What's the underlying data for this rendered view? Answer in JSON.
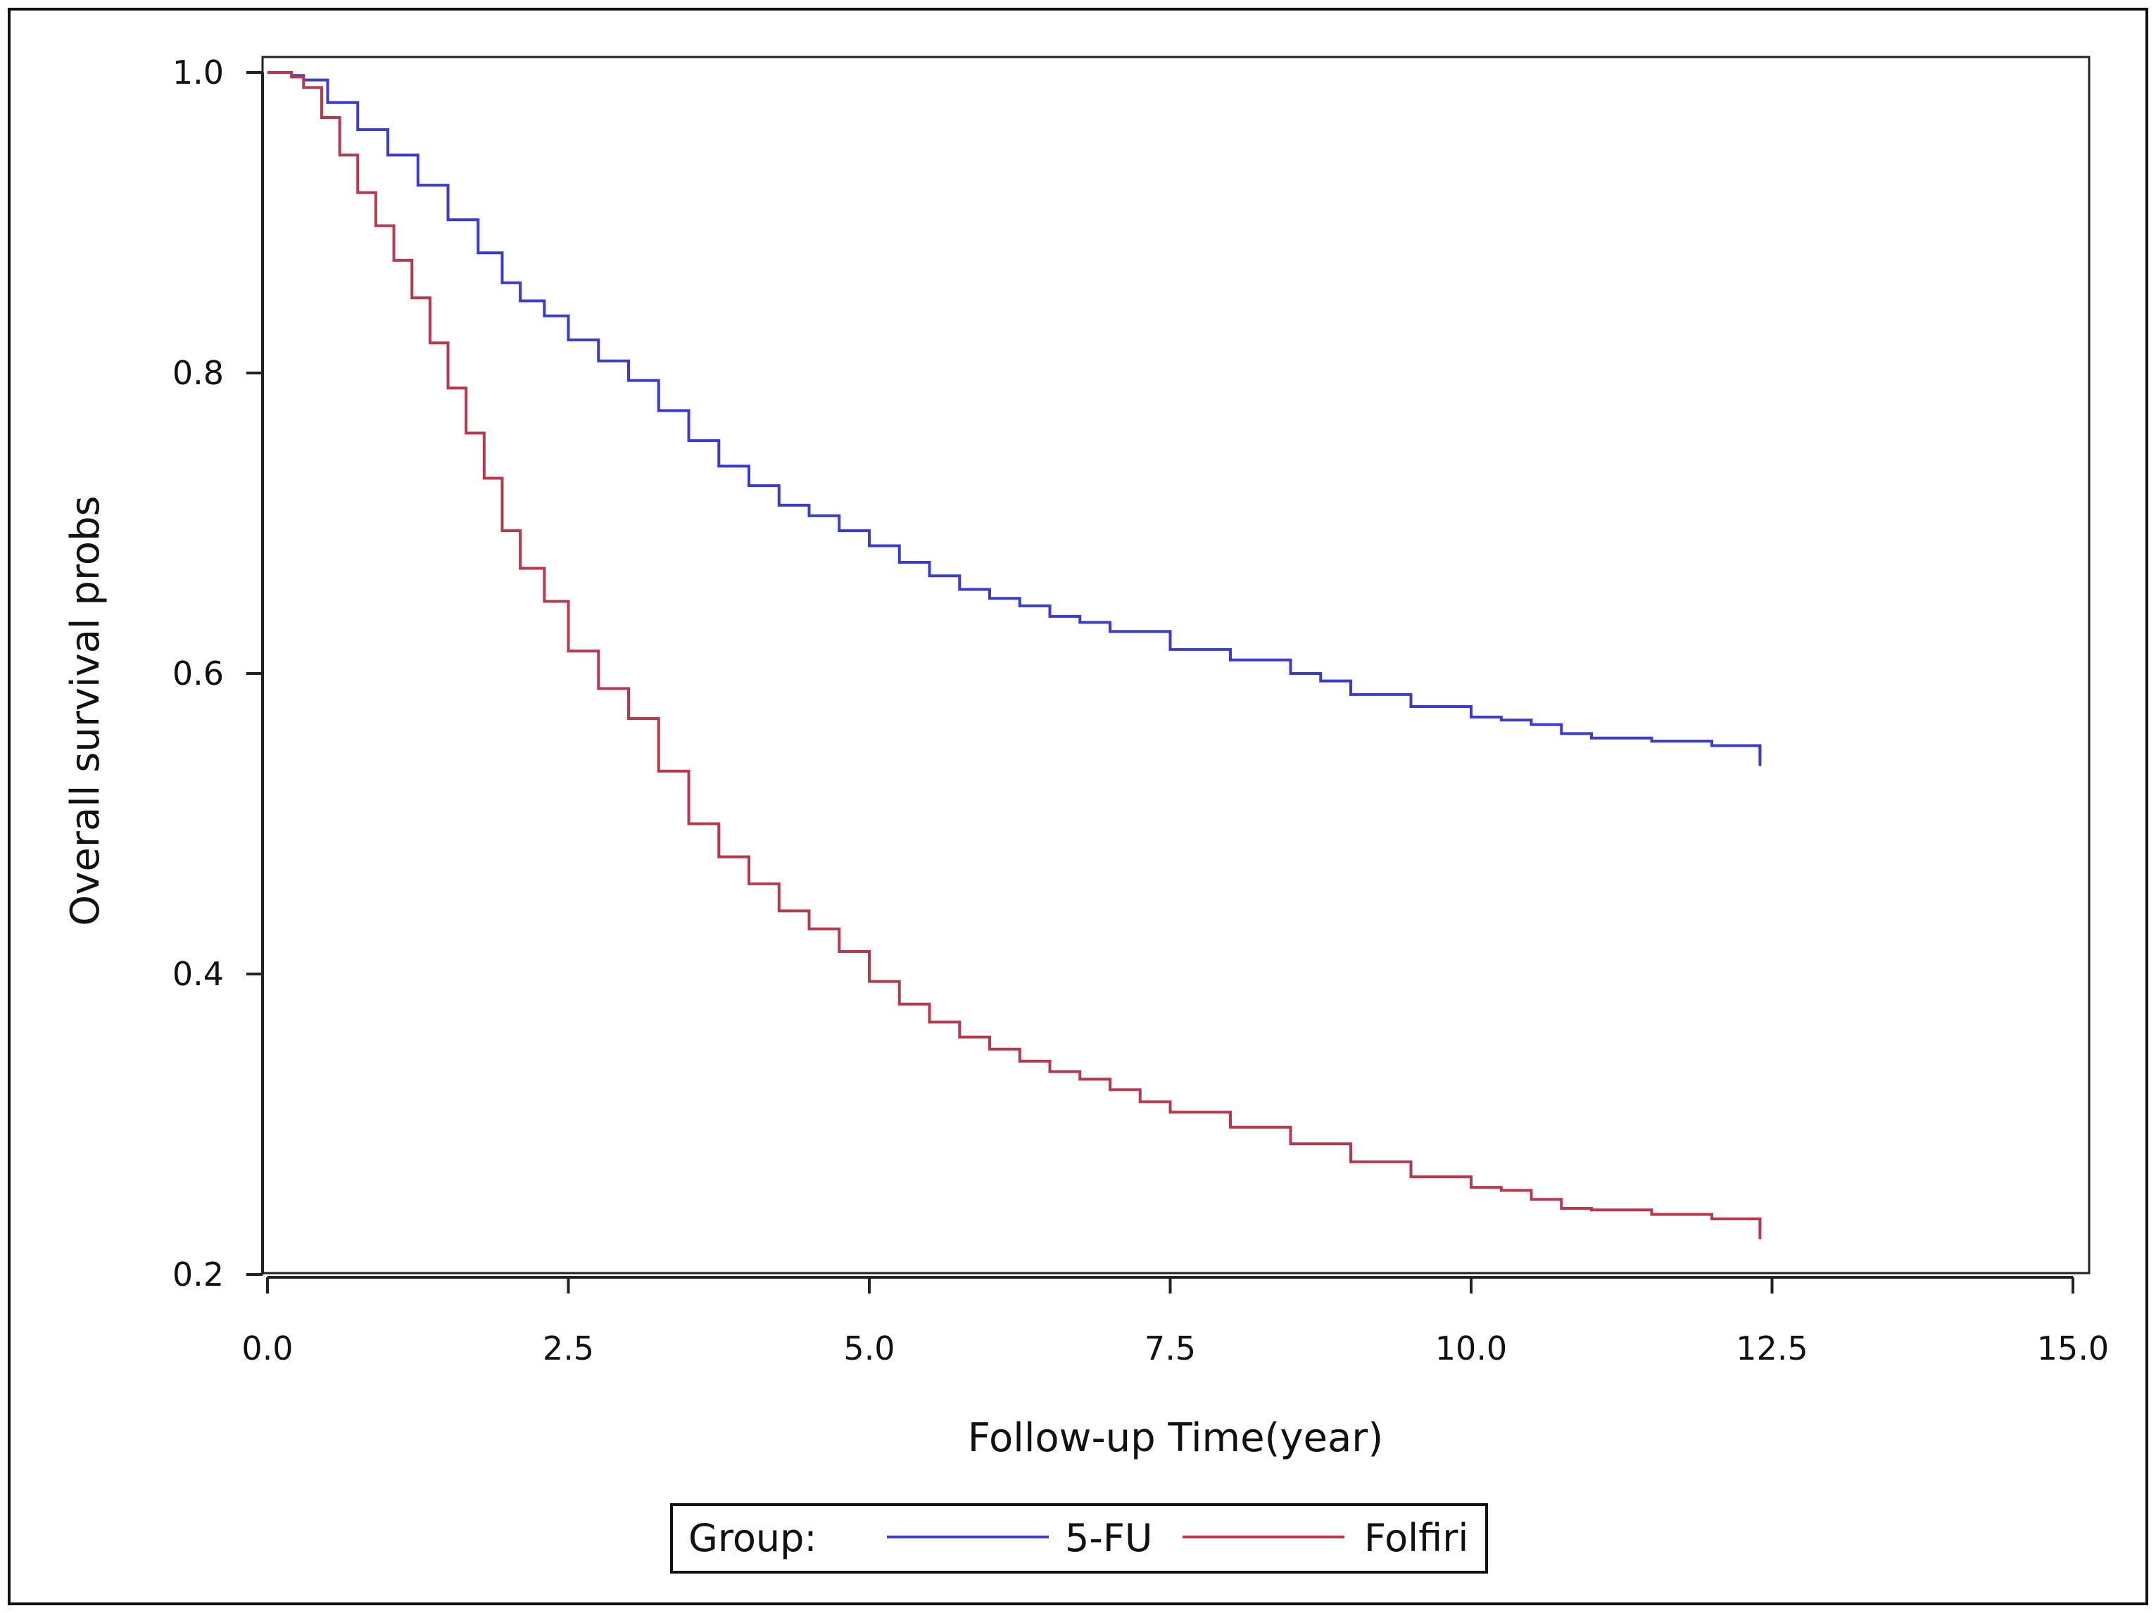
{
  "chart_data": {
    "type": "line",
    "title": "",
    "xlabel": "Follow-up Time(year)",
    "ylabel": "Overall survival probs",
    "xlim": [
      0,
      15
    ],
    "ylim": [
      0.2,
      1.0
    ],
    "x_ticks": [
      "0.0",
      "2.5",
      "5.0",
      "7.5",
      "10.0",
      "12.5",
      "15.0"
    ],
    "y_ticks": [
      "0.2",
      "0.4",
      "0.6",
      "0.8",
      "1.0"
    ],
    "step": true,
    "grid": false,
    "legend": {
      "title": "Group:",
      "position": "bottom-center",
      "entries": [
        "5-FU",
        "Folfiri"
      ]
    },
    "series": [
      {
        "name": "5-FU",
        "color": "#3b3bd4",
        "x": [
          0,
          0.1,
          0.2,
          0.3,
          0.5,
          0.75,
          1.0,
          1.25,
          1.5,
          1.75,
          1.95,
          2.1,
          2.3,
          2.5,
          2.75,
          3.0,
          3.25,
          3.5,
          3.75,
          4.0,
          4.25,
          4.5,
          4.75,
          5.0,
          5.25,
          5.5,
          5.75,
          6.0,
          6.25,
          6.5,
          6.75,
          7.0,
          7.5,
          8.0,
          8.5,
          8.75,
          9.0,
          9.5,
          10.0,
          10.25,
          10.5,
          10.75,
          11.0,
          11.5,
          12.0,
          12.4
        ],
        "values": [
          1.0,
          1.0,
          0.998,
          0.995,
          0.98,
          0.962,
          0.945,
          0.925,
          0.902,
          0.88,
          0.86,
          0.848,
          0.838,
          0.822,
          0.808,
          0.795,
          0.775,
          0.755,
          0.738,
          0.725,
          0.712,
          0.705,
          0.695,
          0.685,
          0.674,
          0.665,
          0.656,
          0.65,
          0.645,
          0.638,
          0.634,
          0.628,
          0.616,
          0.609,
          0.6,
          0.595,
          0.586,
          0.578,
          0.571,
          0.569,
          0.566,
          0.56,
          0.557,
          0.555,
          0.552,
          0.545
        ]
      },
      {
        "name": "Folfiri",
        "color": "#b8384e",
        "x": [
          0,
          0.1,
          0.2,
          0.3,
          0.45,
          0.6,
          0.75,
          0.9,
          1.05,
          1.2,
          1.35,
          1.5,
          1.65,
          1.8,
          1.95,
          2.1,
          2.3,
          2.5,
          2.75,
          3.0,
          3.25,
          3.5,
          3.75,
          4.0,
          4.25,
          4.5,
          4.75,
          5.0,
          5.25,
          5.5,
          5.75,
          6.0,
          6.25,
          6.5,
          6.75,
          7.0,
          7.25,
          7.5,
          8.0,
          8.5,
          9.0,
          9.5,
          10.0,
          10.25,
          10.5,
          10.75,
          11.0,
          11.5,
          12.0,
          12.4
        ],
        "values": [
          1.0,
          1.0,
          0.997,
          0.99,
          0.97,
          0.945,
          0.92,
          0.898,
          0.875,
          0.85,
          0.82,
          0.79,
          0.76,
          0.73,
          0.695,
          0.67,
          0.648,
          0.615,
          0.59,
          0.57,
          0.535,
          0.5,
          0.478,
          0.46,
          0.442,
          0.43,
          0.415,
          0.395,
          0.38,
          0.368,
          0.358,
          0.35,
          0.342,
          0.335,
          0.33,
          0.323,
          0.315,
          0.308,
          0.298,
          0.287,
          0.275,
          0.265,
          0.258,
          0.256,
          0.25,
          0.244,
          0.243,
          0.24,
          0.237,
          0.23
        ]
      }
    ]
  }
}
